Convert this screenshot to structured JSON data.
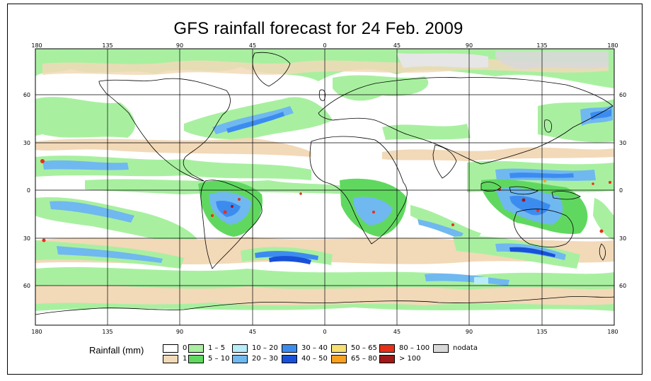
{
  "title": "GFS rainfall forecast for 24 Feb. 2009",
  "map": {
    "top_lon_labels": [
      "180",
      "135",
      "90",
      "45",
      "0",
      "45",
      "90",
      "135",
      "180"
    ],
    "bottom_lon_labels": [
      "180",
      "135",
      "90",
      "45",
      "0",
      "45",
      "90",
      "135",
      "180"
    ],
    "left_lat_labels": [
      "60",
      "30",
      "0",
      "30",
      "60"
    ],
    "right_lat_labels": [
      "60",
      "30",
      "0",
      "30",
      "60"
    ]
  },
  "legend": {
    "title": "Rainfall (mm)",
    "items": [
      {
        "label": "0",
        "color": "#ffffff"
      },
      {
        "label": "1",
        "color": "#f2d9b8"
      },
      {
        "label": "1 – 5",
        "color": "#a8f0a0"
      },
      {
        "label": "5 – 10",
        "color": "#60d860"
      },
      {
        "label": "10 – 20",
        "color": "#b8ecf8"
      },
      {
        "label": "20 – 30",
        "color": "#70b8f0"
      },
      {
        "label": "30 – 40",
        "color": "#3c8cf0"
      },
      {
        "label": "40 – 50",
        "color": "#1850d8"
      },
      {
        "label": "50 – 65",
        "color": "#f8e070"
      },
      {
        "label": "65 – 80",
        "color": "#f8a020"
      },
      {
        "label": "80 – 100",
        "color": "#e83018"
      },
      {
        "label": "> 100",
        "color": "#a01818"
      },
      {
        "label": "nodata",
        "color": "#d8d8d8"
      }
    ]
  }
}
